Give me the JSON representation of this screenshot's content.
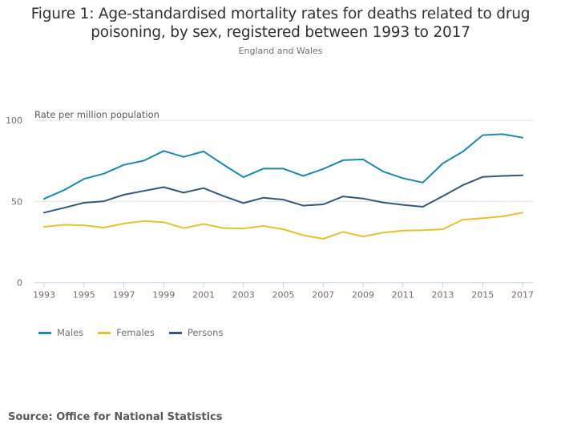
{
  "header": {
    "title_line1": "Figure 1: Age-standardised mortality rates for deaths related to drug",
    "title_line2": "poisoning, by sex, registered between 1993 to 2017",
    "subtitle": "England and Wales"
  },
  "footer": {
    "source": "Source: Office for National Statistics"
  },
  "chart_data": {
    "type": "line",
    "title": "Figure 1: Age-standardised mortality rates for deaths related to drug poisoning, by sex, registered between 1993 to 2017",
    "subtitle": "England and Wales",
    "xlabel": "",
    "ylabel": "Rate per million population",
    "ylim": [
      0,
      100
    ],
    "yticks": [
      0,
      50,
      100
    ],
    "ytick_labels": [
      "0",
      "50",
      "100"
    ],
    "xticks": [
      1993,
      1995,
      1997,
      1999,
      2001,
      2003,
      2005,
      2007,
      2009,
      2011,
      2013,
      2015,
      2017
    ],
    "xtick_labels": [
      "1993",
      "1995",
      "1997",
      "1999",
      "2001",
      "2003",
      "2005",
      "2007",
      "2009",
      "2011",
      "2013",
      "2015",
      "2017"
    ],
    "grid": "horizontal",
    "legend_position": "bottom-left",
    "x": [
      1993,
      1994,
      1995,
      1996,
      1997,
      1998,
      1999,
      2000,
      2001,
      2002,
      2003,
      2004,
      2005,
      2006,
      2007,
      2008,
      2009,
      2010,
      2011,
      2012,
      2013,
      2014,
      2015,
      2016,
      2017
    ],
    "series": [
      {
        "name": "Males",
        "color": "#1f88b0",
        "values": [
          51.6,
          57.0,
          63.9,
          67.1,
          72.5,
          75.1,
          81.1,
          77.4,
          80.8,
          72.6,
          64.9,
          70.2,
          70.2,
          65.7,
          70.0,
          75.4,
          75.9,
          68.5,
          64.3,
          61.6,
          73.4,
          80.6,
          90.8,
          91.4,
          89.3
        ]
      },
      {
        "name": "Females",
        "color": "#e5c22f",
        "values": [
          34.4,
          35.6,
          35.3,
          33.9,
          36.4,
          37.9,
          37.2,
          33.6,
          36.1,
          33.6,
          33.4,
          34.9,
          32.9,
          29.2,
          27.0,
          31.3,
          28.4,
          30.8,
          32.0,
          32.3,
          32.9,
          38.8,
          39.7,
          40.8,
          43.1
        ]
      },
      {
        "name": "Persons",
        "color": "#355878",
        "values": [
          43.1,
          46.1,
          49.2,
          50.1,
          54.1,
          56.5,
          58.8,
          55.4,
          58.2,
          53.3,
          49.0,
          52.3,
          51.1,
          47.4,
          48.2,
          53.1,
          51.8,
          49.4,
          47.9,
          46.7,
          53.3,
          60.0,
          65.1,
          65.7,
          66.1
        ]
      }
    ]
  }
}
